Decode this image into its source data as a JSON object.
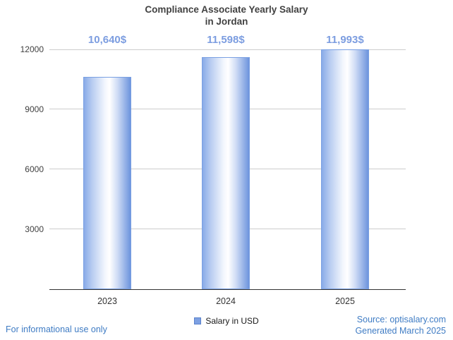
{
  "title_lines": [
    "Compliance Associate Yearly Salary",
    "in Jordan"
  ],
  "chart_data": {
    "type": "bar",
    "title": "Compliance Associate Yearly Salary in Jordan",
    "categories": [
      "2023",
      "2024",
      "2025"
    ],
    "values": [
      10640,
      11598,
      11993
    ],
    "value_labels": [
      "10,640$",
      "11,598$",
      "11,993$"
    ],
    "series_name": "Salary in USD",
    "xlabel": "",
    "ylabel": "",
    "ylim": [
      0,
      12000
    ],
    "yticks": [
      3000,
      6000,
      9000,
      12000
    ],
    "grid": true,
    "legend_position": "bottom",
    "bar_color": "#7fa3e4",
    "value_label_color": "#7c9de0"
  },
  "axis": {
    "yticks": [
      "12000",
      "9000",
      "6000",
      "3000"
    ]
  },
  "legend": {
    "label": "Salary in USD"
  },
  "footer": {
    "left": "For informational use only",
    "source": "Source: optisalary.com",
    "generated": "Generated March 2025"
  }
}
